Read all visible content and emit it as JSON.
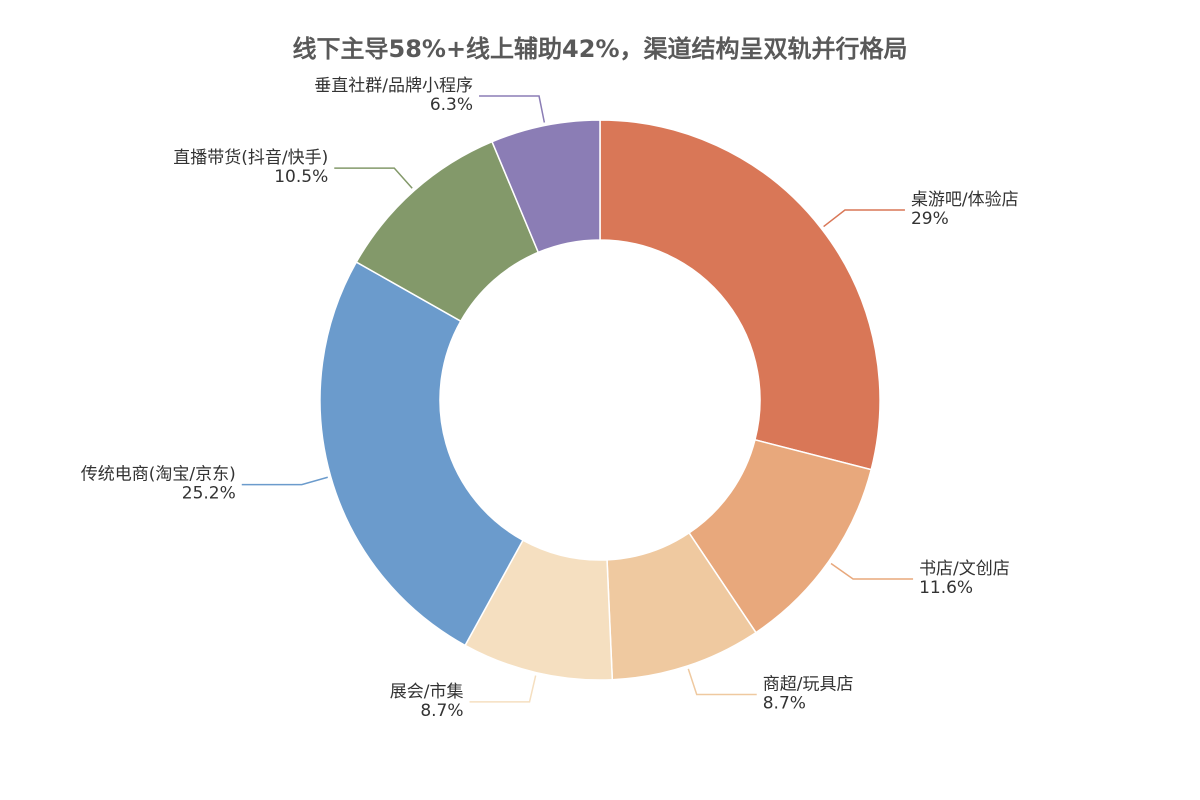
{
  "chart_data": {
    "type": "pie",
    "title": "线下主导58%+线上辅助42%，渠道结构呈双轨并行格局",
    "categories": [
      "桌游吧/体验店",
      "书店/文创店",
      "商超/玩具店",
      "展会/市集",
      "传统电商(淘宝/京东)",
      "直播带货(抖音/快手)",
      "垂直社群/品牌小程序"
    ],
    "values": [
      29,
      11.6,
      8.7,
      8.7,
      25.2,
      10.5,
      6.3
    ],
    "value_labels": [
      "29%",
      "11.6%",
      "8.7%",
      "8.7%",
      "25.2%",
      "10.5%",
      "6.3%"
    ],
    "colors": [
      "#d97757",
      "#e8a87c",
      "#efc9a0",
      "#f5dfc0",
      "#6b9bcc",
      "#83996a",
      "#8b7db5"
    ]
  }
}
